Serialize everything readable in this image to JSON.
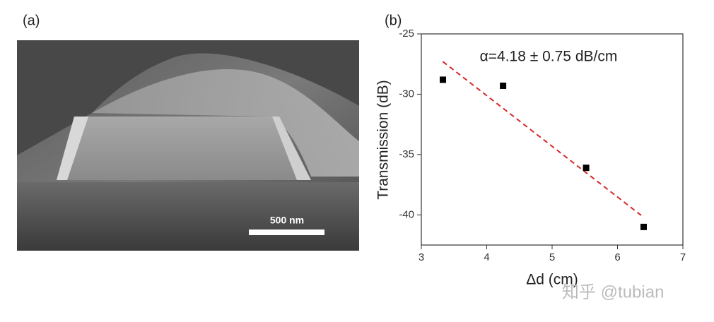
{
  "panel_a": {
    "label": "(a)",
    "scale_bar": "500 nm"
  },
  "panel_b": {
    "label": "(b)"
  },
  "watermark": "知乎 @tubian",
  "chart_data": {
    "type": "scatter",
    "xlabel": "Δd (cm)",
    "ylabel": "Transmission (dB)",
    "annotation": "α=4.18 ± 0.75 dB/cm",
    "x": [
      3.33,
      4.25,
      5.52,
      6.4
    ],
    "values": [
      -28.8,
      -29.3,
      -36.1,
      -41.0
    ],
    "color": "#000000",
    "fit_line": {
      "x": [
        3.33,
        6.4
      ],
      "values": [
        -27.3,
        -40.2
      ],
      "color": "#d62728",
      "dashed": true
    },
    "xlim": [
      3,
      7
    ],
    "ylim": [
      -42.5,
      -25
    ],
    "xticks": [
      3,
      4,
      5,
      6,
      7
    ],
    "yticks": [
      -25,
      -30,
      -35,
      -40
    ]
  }
}
